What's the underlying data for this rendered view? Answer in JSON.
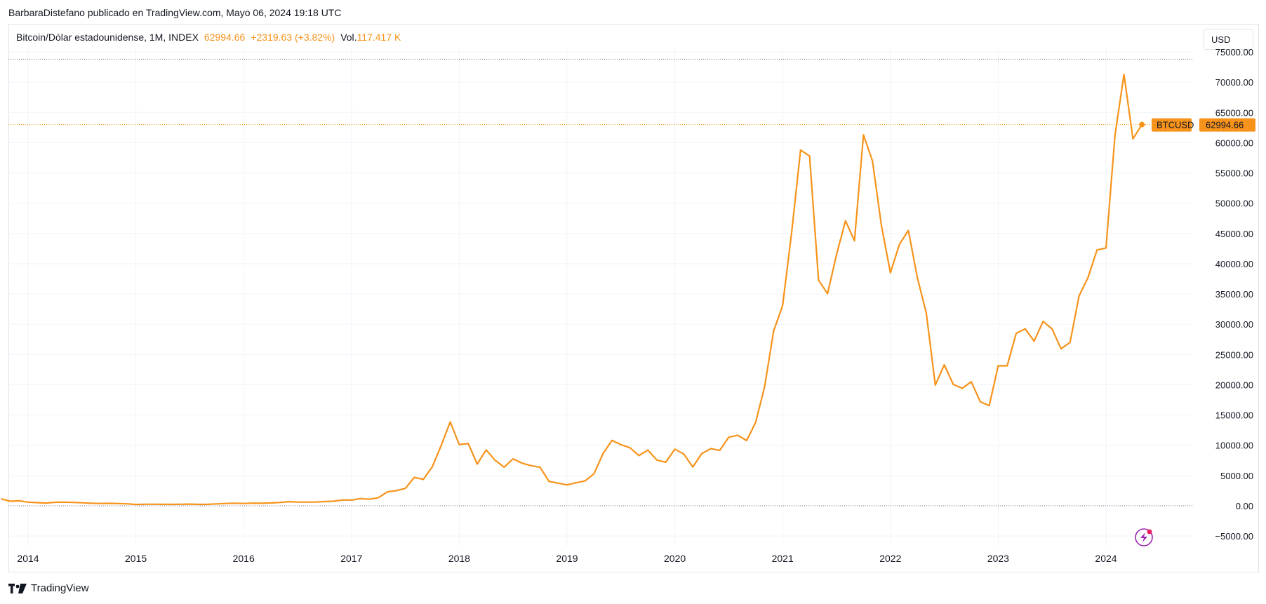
{
  "publisher_line": "BarbaraDistefano publicado en TradingView.com, Mayo 06, 2024 19:18 UTC",
  "legend": {
    "symbol": "Bitcoin/Dólar estadounidense, 1M, INDEX",
    "price": "62994.66",
    "change": "+2319.63 (+3.82%)",
    "vol_label": "Vol.",
    "vol_value": "117.417 K"
  },
  "currency_button": "USD",
  "price_tag": {
    "symbol": "BTCUSD",
    "value": "62994.66"
  },
  "footer": {
    "brand": "TradingView"
  },
  "colors": {
    "line": "#f7931a",
    "grid": "#f0f3fa",
    "axis_text": "#131722",
    "accent": "#f7931a",
    "badge": "#9c27b0"
  },
  "chart_data": {
    "type": "line",
    "title": "Bitcoin/Dólar estadounidense, 1M, INDEX",
    "xlabel": "",
    "ylabel": "",
    "ylim": [
      -7500,
      78000
    ],
    "y_ticks": [
      -5000,
      0,
      5000,
      10000,
      15000,
      20000,
      25000,
      30000,
      35000,
      40000,
      45000,
      50000,
      55000,
      60000,
      65000,
      70000,
      75000
    ],
    "y_tick_labels": [
      "−5000.00",
      "0.00",
      "5000.00",
      "10000.00",
      "15000.00",
      "20000.00",
      "25000.00",
      "30000.00",
      "35000.00",
      "40000.00",
      "45000.00",
      "50000.00",
      "55000.00",
      "60000.00",
      "65000.00",
      "70000.00",
      "75000.00"
    ],
    "x_start": "2013-10",
    "x_end": "2025-01",
    "x_ticks": [
      "2014-01",
      "2015-01",
      "2016-01",
      "2017-01",
      "2018-01",
      "2019-01",
      "2020-01",
      "2021-01",
      "2022-01",
      "2023-01",
      "2024-01"
    ],
    "x_tick_labels": [
      "2014",
      "2015",
      "2016",
      "2017",
      "2018",
      "2019",
      "2020",
      "2021",
      "2022",
      "2023",
      "2024"
    ],
    "grid": true,
    "reference_lines": [
      {
        "y": 0,
        "style": "dotted"
      },
      {
        "y": 73800,
        "style": "dotted"
      },
      {
        "y": 62994.66,
        "style": "dotted",
        "color": "#f7931a"
      }
    ],
    "series": [
      {
        "name": "BTCUSD",
        "x": [
          "2013-10",
          "2013-11",
          "2013-12",
          "2014-01",
          "2014-02",
          "2014-03",
          "2014-04",
          "2014-05",
          "2014-06",
          "2014-07",
          "2014-08",
          "2014-09",
          "2014-10",
          "2014-11",
          "2014-12",
          "2015-01",
          "2015-02",
          "2015-03",
          "2015-04",
          "2015-05",
          "2015-06",
          "2015-07",
          "2015-08",
          "2015-09",
          "2015-10",
          "2015-11",
          "2015-12",
          "2016-01",
          "2016-02",
          "2016-03",
          "2016-04",
          "2016-05",
          "2016-06",
          "2016-07",
          "2016-08",
          "2016-09",
          "2016-10",
          "2016-11",
          "2016-12",
          "2017-01",
          "2017-02",
          "2017-03",
          "2017-04",
          "2017-05",
          "2017-06",
          "2017-07",
          "2017-08",
          "2017-09",
          "2017-10",
          "2017-11",
          "2017-12",
          "2018-01",
          "2018-02",
          "2018-03",
          "2018-04",
          "2018-05",
          "2018-06",
          "2018-07",
          "2018-08",
          "2018-09",
          "2018-10",
          "2018-11",
          "2018-12",
          "2019-01",
          "2019-02",
          "2019-03",
          "2019-04",
          "2019-05",
          "2019-06",
          "2019-07",
          "2019-08",
          "2019-09",
          "2019-10",
          "2019-11",
          "2019-12",
          "2020-01",
          "2020-02",
          "2020-03",
          "2020-04",
          "2020-05",
          "2020-06",
          "2020-07",
          "2020-08",
          "2020-09",
          "2020-10",
          "2020-11",
          "2020-12",
          "2021-01",
          "2021-02",
          "2021-03",
          "2021-04",
          "2021-05",
          "2021-06",
          "2021-07",
          "2021-08",
          "2021-09",
          "2021-10",
          "2021-11",
          "2021-12",
          "2022-01",
          "2022-02",
          "2022-03",
          "2022-04",
          "2022-05",
          "2022-06",
          "2022-07",
          "2022-08",
          "2022-09",
          "2022-10",
          "2022-11",
          "2022-12",
          "2023-01",
          "2023-02",
          "2023-03",
          "2023-04",
          "2023-05",
          "2023-06",
          "2023-07",
          "2023-08",
          "2023-09",
          "2023-10",
          "2023-11",
          "2023-12",
          "2024-01",
          "2024-02",
          "2024-03",
          "2024-04",
          "2024-05"
        ],
        "values": [
          1150,
          750,
          820,
          600,
          520,
          450,
          580,
          600,
          560,
          500,
          420,
          380,
          400,
          370,
          320,
          220,
          260,
          250,
          240,
          230,
          260,
          280,
          230,
          240,
          310,
          380,
          430,
          380,
          440,
          420,
          460,
          540,
          680,
          630,
          610,
          620,
          700,
          750,
          960,
          940,
          1190,
          1080,
          1340,
          2300,
          2500,
          2870,
          4700,
          4360,
          6450,
          10000,
          13860,
          10100,
          10300,
          6900,
          9240,
          7500,
          6390,
          7760,
          7040,
          6630,
          6370,
          4020,
          3740,
          3460,
          3800,
          4100,
          5300,
          8600,
          10800,
          10100,
          9600,
          8300,
          9200,
          7560,
          7200,
          9350,
          8550,
          6420,
          8630,
          9450,
          9150,
          11330,
          11660,
          10780,
          13800,
          19700,
          28900,
          33100,
          45100,
          58800,
          57800,
          37300,
          35050,
          41500,
          47100,
          43800,
          61300,
          57000,
          46300,
          38500,
          43200,
          45500,
          37700,
          31800,
          19950,
          23300,
          20050,
          19420,
          20500,
          17200,
          16550,
          23140,
          23130,
          28480,
          29250,
          27210,
          30480,
          29230,
          25940,
          27000,
          34670,
          37720,
          42280,
          42590,
          61200,
          71300,
          60640,
          62994.66
        ]
      }
    ]
  }
}
